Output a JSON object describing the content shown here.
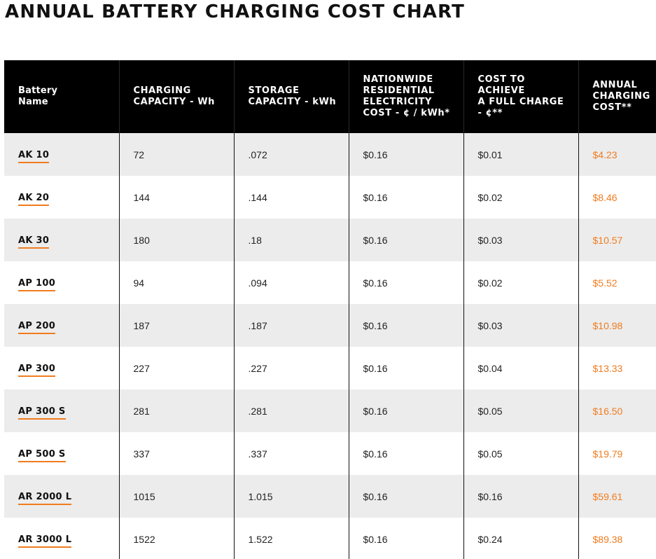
{
  "page": {
    "title": "ANNUAL BATTERY CHARGING COST CHART"
  },
  "colors": {
    "header_bg": "#000000",
    "header_text": "#ffffff",
    "row_shade": "#ececec",
    "accent_orange": "#f07c1f"
  },
  "table": {
    "headers": [
      [
        "Battery",
        "Name"
      ],
      [
        "CHARGING",
        "CAPACITY - Wh"
      ],
      [
        "STORAGE",
        "CAPACITY - kWh"
      ],
      [
        "NATIONWIDE",
        "RESIDENTIAL",
        "ELECTRICITY",
        "COST - ¢ / kWh*"
      ],
      [
        "COST TO",
        "ACHIEVE",
        "A FULL CHARGE",
        "- ¢**"
      ],
      [
        "ANNUAL",
        "CHARGING",
        "COST**"
      ]
    ],
    "rows": [
      [
        "AK 10",
        "72",
        ".072",
        "$0.16",
        "$0.01",
        "$4.23"
      ],
      [
        "AK 20",
        "144",
        ".144",
        "$0.16",
        "$0.02",
        "$8.46"
      ],
      [
        "AK 30",
        "180",
        ".18",
        "$0.16",
        "$0.03",
        "$10.57"
      ],
      [
        "AP 100",
        "94",
        ".094",
        "$0.16",
        "$0.02",
        "$5.52"
      ],
      [
        "AP 200",
        "187",
        ".187",
        "$0.16",
        "$0.03",
        "$10.98"
      ],
      [
        "AP 300",
        "227",
        ".227",
        "$0.16",
        "$0.04",
        "$13.33"
      ],
      [
        "AP 300 S",
        "281",
        ".281",
        "$0.16",
        "$0.05",
        "$16.50"
      ],
      [
        "AP 500 S",
        "337",
        ".337",
        "$0.16",
        "$0.05",
        "$19.79"
      ],
      [
        "AR 2000 L",
        "1015",
        "1.015",
        "$0.16",
        "$0.16",
        "$59.61"
      ],
      [
        "AR 3000 L",
        "1522",
        "1.522",
        "$0.16",
        "$0.24",
        "$89.38"
      ]
    ]
  }
}
